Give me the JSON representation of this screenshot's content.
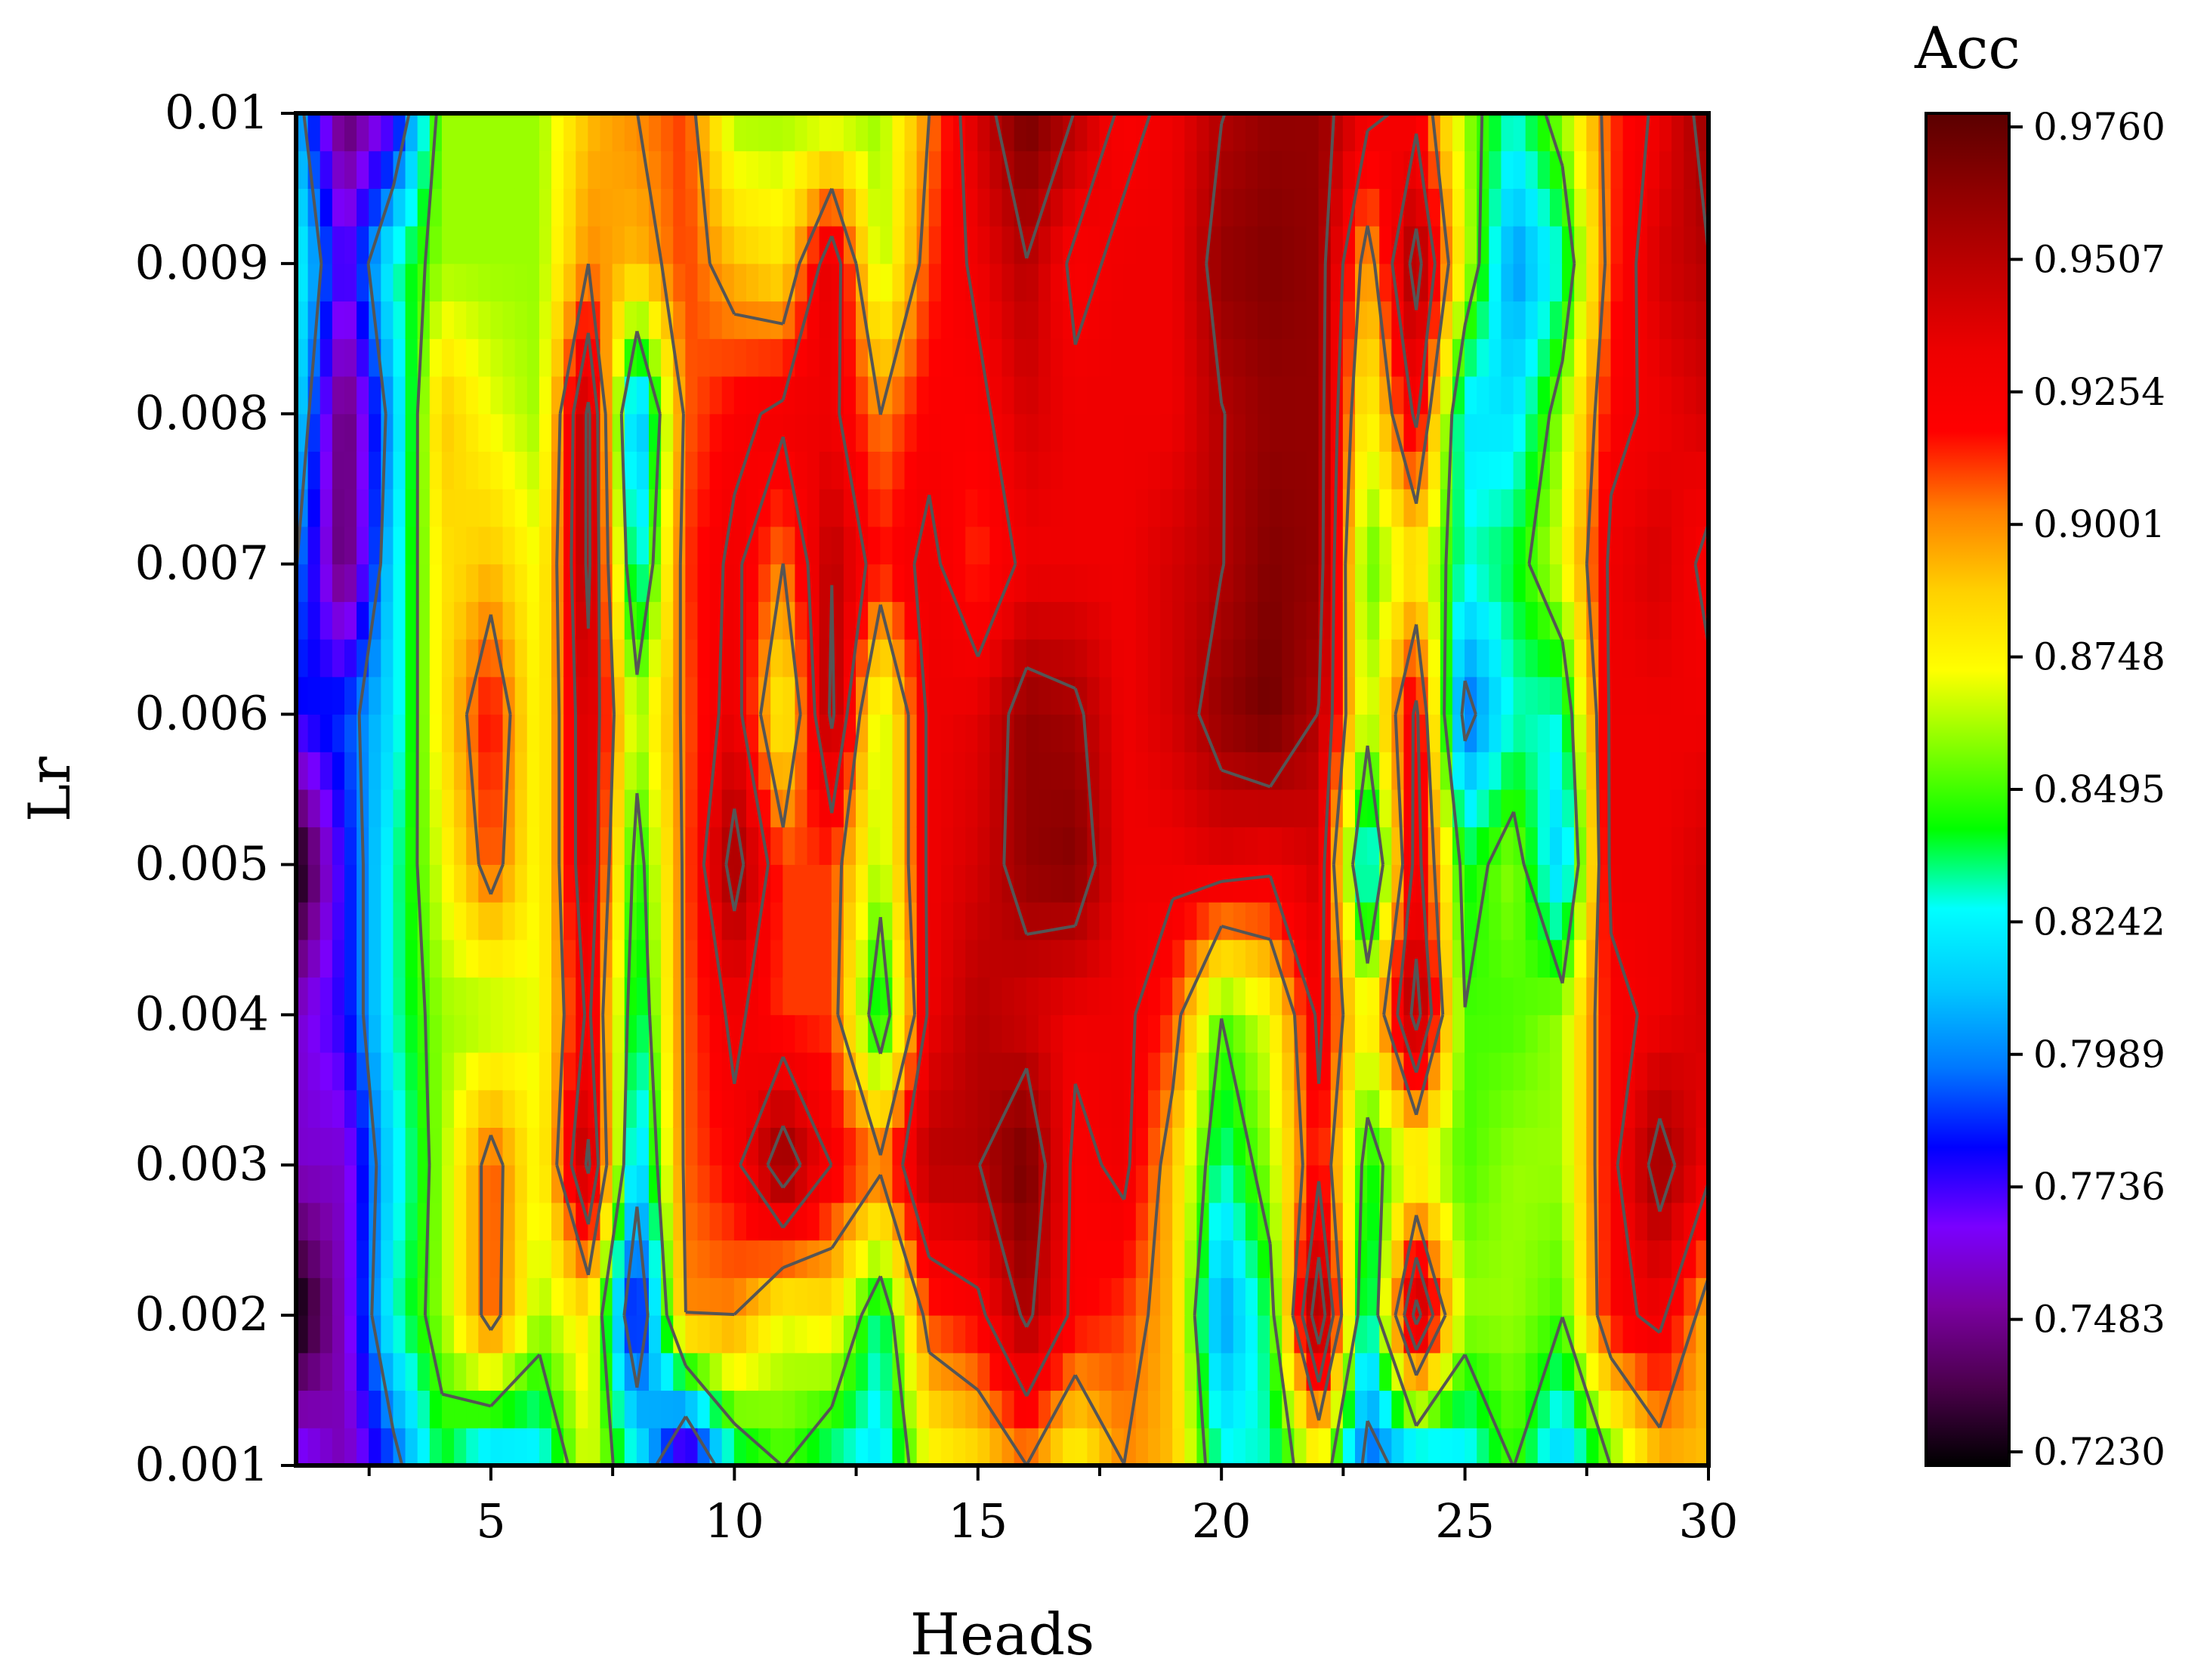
{
  "chart_data": {
    "type": "heatmap",
    "subtype": "filled-contour",
    "xlabel": "Heads",
    "ylabel": "Lr",
    "colorbar_title": "Acc",
    "x": [
      1,
      2,
      3,
      4,
      5,
      6,
      7,
      8,
      9,
      10,
      11,
      12,
      13,
      14,
      15,
      16,
      17,
      18,
      19,
      20,
      21,
      22,
      23,
      24,
      25,
      26,
      27,
      28,
      29,
      30
    ],
    "y": [
      0.001,
      0.002,
      0.003,
      0.004,
      0.005,
      0.006,
      0.007,
      0.008,
      0.009,
      0.01
    ],
    "xlim": [
      1,
      30
    ],
    "ylim": [
      0.001,
      0.01
    ],
    "x_ticks": [
      "5",
      "10",
      "15",
      "20",
      "25",
      "30"
    ],
    "x_tick_values": [
      5,
      10,
      15,
      20,
      25,
      30
    ],
    "y_ticks": [
      "0.001",
      "0.002",
      "0.003",
      "0.004",
      "0.005",
      "0.006",
      "0.007",
      "0.008",
      "0.009",
      "0.01"
    ],
    "colorbar_ticks": [
      "0.7230",
      "0.7483",
      "0.7736",
      "0.7989",
      "0.8242",
      "0.8495",
      "0.8748",
      "0.9001",
      "0.9254",
      "0.9507",
      "0.9760"
    ],
    "zlim": [
      0.723,
      0.976
    ],
    "colorscale": [
      "#000000",
      "#4b004b",
      "#7a00a0",
      "#7a00ff",
      "#0000ff",
      "#0078ff",
      "#00c8ff",
      "#00ffff",
      "#00ff00",
      "#80ff00",
      "#ffff00",
      "#ffd000",
      "#ff8000",
      "#ff0000",
      "#ee0000",
      "#c00000",
      "#900000",
      "#5a0000"
    ],
    "contour_color": "#555555",
    "grid": false,
    "note_values": "row-major: values[i] is the row for y[i], columns follow x",
    "values": [
      [
        0.775,
        0.755,
        0.79,
        0.84,
        0.81,
        0.82,
        0.87,
        0.83,
        0.75,
        0.83,
        0.85,
        0.83,
        0.82,
        0.87,
        0.88,
        0.9,
        0.87,
        0.9,
        0.89,
        0.83,
        0.83,
        0.87,
        0.79,
        0.81,
        0.82,
        0.85,
        0.81,
        0.85,
        0.89,
        0.89
      ],
      [
        0.72,
        0.76,
        0.83,
        0.86,
        0.91,
        0.86,
        0.88,
        0.77,
        0.9,
        0.9,
        0.87,
        0.88,
        0.83,
        0.91,
        0.92,
        0.955,
        0.92,
        0.91,
        0.89,
        0.8,
        0.84,
        0.97,
        0.82,
        0.96,
        0.86,
        0.86,
        0.85,
        0.92,
        0.93,
        0.89
      ],
      [
        0.76,
        0.76,
        0.82,
        0.86,
        0.91,
        0.87,
        0.955,
        0.81,
        0.905,
        0.92,
        0.965,
        0.925,
        0.905,
        0.95,
        0.95,
        0.97,
        0.92,
        0.93,
        0.89,
        0.83,
        0.86,
        0.92,
        0.84,
        0.87,
        0.85,
        0.86,
        0.86,
        0.92,
        0.96,
        0.93
      ],
      [
        0.76,
        0.78,
        0.83,
        0.86,
        0.86,
        0.87,
        0.93,
        0.83,
        0.905,
        0.93,
        0.91,
        0.91,
        0.83,
        0.93,
        0.95,
        0.94,
        0.93,
        0.93,
        0.91,
        0.85,
        0.87,
        0.93,
        0.87,
        0.96,
        0.85,
        0.85,
        0.86,
        0.92,
        0.93,
        0.94
      ],
      [
        0.72,
        0.78,
        0.83,
        0.87,
        0.91,
        0.87,
        0.945,
        0.84,
        0.905,
        0.96,
        0.91,
        0.91,
        0.86,
        0.93,
        0.94,
        0.96,
        0.965,
        0.93,
        0.93,
        0.935,
        0.93,
        0.94,
        0.81,
        0.935,
        0.84,
        0.86,
        0.81,
        0.93,
        0.93,
        0.94
      ],
      [
        0.78,
        0.79,
        0.82,
        0.88,
        0.92,
        0.87,
        0.945,
        0.86,
        0.905,
        0.935,
        0.87,
        0.955,
        0.86,
        0.93,
        0.935,
        0.96,
        0.955,
        0.93,
        0.94,
        0.96,
        0.97,
        0.95,
        0.86,
        0.93,
        0.79,
        0.83,
        0.83,
        0.93,
        0.93,
        0.93
      ],
      [
        0.8,
        0.74,
        0.82,
        0.88,
        0.89,
        0.87,
        0.955,
        0.82,
        0.91,
        0.93,
        0.9,
        0.95,
        0.915,
        0.93,
        0.91,
        0.93,
        0.93,
        0.93,
        0.94,
        0.95,
        0.965,
        0.96,
        0.85,
        0.88,
        0.83,
        0.84,
        0.87,
        0.93,
        0.94,
        0.92
      ],
      [
        0.82,
        0.74,
        0.81,
        0.89,
        0.87,
        0.86,
        0.955,
        0.8,
        0.905,
        0.92,
        0.93,
        0.93,
        0.9,
        0.92,
        0.92,
        0.94,
        0.93,
        0.93,
        0.93,
        0.95,
        0.96,
        0.96,
        0.87,
        0.93,
        0.82,
        0.82,
        0.86,
        0.92,
        0.93,
        0.94
      ],
      [
        0.83,
        0.77,
        0.83,
        0.86,
        0.86,
        0.86,
        0.9,
        0.89,
        0.91,
        0.89,
        0.88,
        0.94,
        0.86,
        0.91,
        0.93,
        0.95,
        0.92,
        0.93,
        0.93,
        0.96,
        0.965,
        0.96,
        0.89,
        0.96,
        0.87,
        0.8,
        0.83,
        0.91,
        0.94,
        0.95
      ],
      [
        0.81,
        0.74,
        0.77,
        0.86,
        0.86,
        0.86,
        0.89,
        0.9,
        0.91,
        0.86,
        0.86,
        0.86,
        0.86,
        0.9,
        0.94,
        0.97,
        0.95,
        0.92,
        0.93,
        0.95,
        0.96,
        0.96,
        0.93,
        0.92,
        0.86,
        0.83,
        0.86,
        0.91,
        0.93,
        0.96
      ]
    ]
  }
}
